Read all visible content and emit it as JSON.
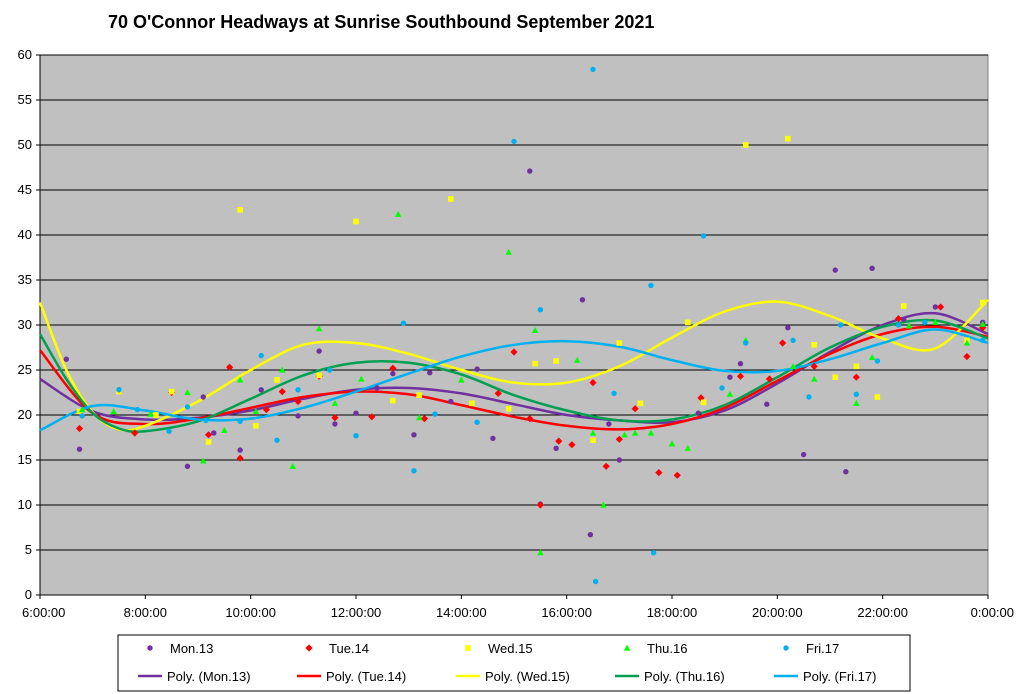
{
  "chart_data": {
    "type": "scatter",
    "title": "70 O'Connor Headways at Sunrise Southbound September 2021",
    "xlabel": "",
    "ylabel": "",
    "xlim": [
      6,
      24
    ],
    "ylim": [
      0,
      60
    ],
    "x_ticks": [
      {
        "value": 6,
        "label": "6:00:00"
      },
      {
        "value": 8,
        "label": "8:00:00"
      },
      {
        "value": 10,
        "label": "10:00:00"
      },
      {
        "value": 12,
        "label": "12:00:00"
      },
      {
        "value": 14,
        "label": "14:00:00"
      },
      {
        "value": 16,
        "label": "16:00:00"
      },
      {
        "value": 18,
        "label": "18:00:00"
      },
      {
        "value": 20,
        "label": "20:00:00"
      },
      {
        "value": 22,
        "label": "22:00:00"
      },
      {
        "value": 24,
        "label": "0:00:00"
      }
    ],
    "y_ticks": [
      0,
      5,
      10,
      15,
      20,
      25,
      30,
      35,
      40,
      45,
      50,
      55,
      60
    ],
    "grid": "horizontal",
    "plot_background": "#c0c0c0",
    "legend_position": "bottom",
    "series": [
      {
        "name": "Mon.13",
        "marker": "circle",
        "color": "#7030a0",
        "points": [
          [
            6.5,
            26.2
          ],
          [
            6.75,
            16.2
          ],
          [
            7.5,
            22.8
          ],
          [
            8.8,
            14.3
          ],
          [
            9.1,
            22.0
          ],
          [
            9.3,
            18.0
          ],
          [
            9.6,
            25.3
          ],
          [
            9.8,
            16.1
          ],
          [
            10.2,
            22.8
          ],
          [
            10.9,
            19.9
          ],
          [
            11.3,
            27.1
          ],
          [
            11.6,
            19.0
          ],
          [
            12.0,
            20.2
          ],
          [
            12.4,
            23.0
          ],
          [
            12.7,
            24.6
          ],
          [
            13.1,
            17.8
          ],
          [
            13.4,
            24.7
          ],
          [
            13.8,
            21.5
          ],
          [
            14.3,
            25.1
          ],
          [
            14.6,
            17.4
          ],
          [
            15.3,
            47.1
          ],
          [
            15.5,
            10.1
          ],
          [
            15.8,
            16.3
          ],
          [
            16.3,
            32.8
          ],
          [
            16.45,
            6.7
          ],
          [
            16.8,
            19.0
          ],
          [
            17.0,
            15.0
          ],
          [
            18.5,
            20.2
          ],
          [
            19.1,
            24.2
          ],
          [
            19.3,
            25.7
          ],
          [
            19.8,
            21.2
          ],
          [
            20.2,
            29.7
          ],
          [
            20.5,
            15.6
          ],
          [
            21.1,
            36.1
          ],
          [
            21.3,
            13.7
          ],
          [
            21.8,
            36.3
          ],
          [
            22.4,
            30.6
          ],
          [
            23.0,
            32.0
          ],
          [
            23.6,
            28.2
          ],
          [
            23.9,
            30.3
          ]
        ]
      },
      {
        "name": "Tue.14",
        "marker": "diamond",
        "color": "#ff0000",
        "points": [
          [
            6.75,
            18.5
          ],
          [
            7.8,
            18.0
          ],
          [
            8.5,
            22.5
          ],
          [
            9.2,
            17.8
          ],
          [
            9.6,
            25.3
          ],
          [
            9.8,
            15.2
          ],
          [
            10.3,
            20.6
          ],
          [
            10.6,
            22.6
          ],
          [
            10.9,
            21.5
          ],
          [
            11.3,
            24.3
          ],
          [
            11.6,
            19.7
          ],
          [
            12.3,
            19.8
          ],
          [
            12.7,
            25.2
          ],
          [
            13.3,
            19.6
          ],
          [
            14.7,
            22.4
          ],
          [
            15.0,
            27.0
          ],
          [
            15.3,
            19.6
          ],
          [
            15.5,
            10.0
          ],
          [
            15.85,
            17.1
          ],
          [
            16.1,
            16.7
          ],
          [
            16.5,
            23.6
          ],
          [
            16.75,
            14.3
          ],
          [
            17.0,
            17.3
          ],
          [
            17.3,
            20.7
          ],
          [
            17.75,
            13.6
          ],
          [
            18.1,
            13.3
          ],
          [
            18.55,
            21.9
          ],
          [
            19.3,
            24.3
          ],
          [
            19.85,
            24.0
          ],
          [
            20.1,
            28.0
          ],
          [
            20.7,
            25.4
          ],
          [
            21.5,
            24.2
          ],
          [
            22.3,
            30.7
          ],
          [
            23.1,
            32.0
          ],
          [
            23.6,
            26.5
          ],
          [
            23.9,
            29.7
          ]
        ]
      },
      {
        "name": "Wed.15",
        "marker": "square",
        "color": "#ffff00",
        "points": [
          [
            6.75,
            20.4
          ],
          [
            7.5,
            22.6
          ],
          [
            8.2,
            20.0
          ],
          [
            8.5,
            22.6
          ],
          [
            9.2,
            17.0
          ],
          [
            9.8,
            42.8
          ],
          [
            10.1,
            18.8
          ],
          [
            10.5,
            23.9
          ],
          [
            11.3,
            24.4
          ],
          [
            12.0,
            41.5
          ],
          [
            12.7,
            21.6
          ],
          [
            13.2,
            22.2
          ],
          [
            13.8,
            44.0
          ],
          [
            14.2,
            21.3
          ],
          [
            14.9,
            20.7
          ],
          [
            15.4,
            25.7
          ],
          [
            15.8,
            26.0
          ],
          [
            16.5,
            17.2
          ],
          [
            17.0,
            28.0
          ],
          [
            17.4,
            21.3
          ],
          [
            18.3,
            30.3
          ],
          [
            18.6,
            21.4
          ],
          [
            19.4,
            50.0
          ],
          [
            20.2,
            50.7
          ],
          [
            20.7,
            27.8
          ],
          [
            21.1,
            24.2
          ],
          [
            21.5,
            25.4
          ],
          [
            21.9,
            22.0
          ],
          [
            22.4,
            32.1
          ],
          [
            23.6,
            28.3
          ],
          [
            23.9,
            32.5
          ]
        ]
      },
      {
        "name": "Thu.16",
        "marker": "triangle",
        "color": "#00ff00",
        "points": [
          [
            6.8,
            20.6
          ],
          [
            7.4,
            20.4
          ],
          [
            8.1,
            20.1
          ],
          [
            8.8,
            22.5
          ],
          [
            9.1,
            14.9
          ],
          [
            9.5,
            18.3
          ],
          [
            9.8,
            23.9
          ],
          [
            10.1,
            20.4
          ],
          [
            10.6,
            25.0
          ],
          [
            10.8,
            14.3
          ],
          [
            11.3,
            29.6
          ],
          [
            11.6,
            21.3
          ],
          [
            12.1,
            24.0
          ],
          [
            12.8,
            42.3
          ],
          [
            13.2,
            19.7
          ],
          [
            14.0,
            23.9
          ],
          [
            14.9,
            38.1
          ],
          [
            15.4,
            29.4
          ],
          [
            15.5,
            4.7
          ],
          [
            16.2,
            26.1
          ],
          [
            16.5,
            18.0
          ],
          [
            16.7,
            10.0
          ],
          [
            17.1,
            17.8
          ],
          [
            17.3,
            18.0
          ],
          [
            17.6,
            18.0
          ],
          [
            18.0,
            16.8
          ],
          [
            18.3,
            16.3
          ],
          [
            19.1,
            22.3
          ],
          [
            19.4,
            28.3
          ],
          [
            20.3,
            25.4
          ],
          [
            20.7,
            24.0
          ],
          [
            21.5,
            21.3
          ],
          [
            21.8,
            26.4
          ],
          [
            22.5,
            29.9
          ],
          [
            23.0,
            30.3
          ],
          [
            23.6,
            28.0
          ],
          [
            23.9,
            30.1
          ]
        ]
      },
      {
        "name": "Fri.17",
        "marker": "circle",
        "color": "#00b0f0",
        "points": [
          [
            6.8,
            19.9
          ],
          [
            7.5,
            22.8
          ],
          [
            7.85,
            20.6
          ],
          [
            8.45,
            18.2
          ],
          [
            8.8,
            20.9
          ],
          [
            9.15,
            19.4
          ],
          [
            9.8,
            19.3
          ],
          [
            10.2,
            26.6
          ],
          [
            10.5,
            17.2
          ],
          [
            10.9,
            22.8
          ],
          [
            11.5,
            25.0
          ],
          [
            12.0,
            17.7
          ],
          [
            12.9,
            30.2
          ],
          [
            13.1,
            13.8
          ],
          [
            13.5,
            20.1
          ],
          [
            14.3,
            19.2
          ],
          [
            15.0,
            50.4
          ],
          [
            15.5,
            31.7
          ],
          [
            16.5,
            58.4
          ],
          [
            16.55,
            1.5
          ],
          [
            16.9,
            22.4
          ],
          [
            17.6,
            34.4
          ],
          [
            17.65,
            4.7
          ],
          [
            18.6,
            39.9
          ],
          [
            18.95,
            23.0
          ],
          [
            19.4,
            28.0
          ],
          [
            20.3,
            28.3
          ],
          [
            20.6,
            22.0
          ],
          [
            21.2,
            30.0
          ],
          [
            21.5,
            22.3
          ],
          [
            21.9,
            26.0
          ],
          [
            22.3,
            30.0
          ],
          [
            22.8,
            30.3
          ],
          [
            23.9,
            28.3
          ]
        ]
      }
    ],
    "trendlines": [
      {
        "name": "Poly. (Mon.13)",
        "color": "#7030a0",
        "points": [
          [
            6,
            24.0
          ],
          [
            7,
            20.4
          ],
          [
            8,
            19.5
          ],
          [
            9,
            19.7
          ],
          [
            10,
            20.5
          ],
          [
            11,
            21.8
          ],
          [
            12,
            22.8
          ],
          [
            13,
            23.0
          ],
          [
            14,
            22.4
          ],
          [
            15,
            21.2
          ],
          [
            16,
            20.0
          ],
          [
            17,
            19.4
          ],
          [
            18,
            19.2
          ],
          [
            19,
            20.5
          ],
          [
            20,
            23.5
          ],
          [
            21,
            27.0
          ],
          [
            22,
            30.0
          ],
          [
            23,
            31.3
          ],
          [
            24,
            29.0
          ]
        ]
      },
      {
        "name": "Poly. (Tue.14)",
        "color": "#ff0000",
        "points": [
          [
            6,
            27.2
          ],
          [
            7,
            20.2
          ],
          [
            8,
            19.0
          ],
          [
            9,
            19.6
          ],
          [
            10,
            20.8
          ],
          [
            11,
            22.0
          ],
          [
            12,
            22.6
          ],
          [
            13,
            22.3
          ],
          [
            14,
            21.1
          ],
          [
            15,
            19.8
          ],
          [
            16,
            18.8
          ],
          [
            17,
            18.4
          ],
          [
            18,
            19.0
          ],
          [
            19,
            20.8
          ],
          [
            20,
            23.8
          ],
          [
            21,
            26.8
          ],
          [
            22,
            29.0
          ],
          [
            23,
            29.8
          ],
          [
            24,
            28.7
          ]
        ]
      },
      {
        "name": "Poly. (Wed.15)",
        "color": "#ffff00",
        "points": [
          [
            6,
            32.5
          ],
          [
            6.5,
            25.0
          ],
          [
            7,
            20.3
          ],
          [
            7.5,
            18.4
          ],
          [
            8,
            18.8
          ],
          [
            9,
            21.5
          ],
          [
            10,
            25.0
          ],
          [
            11,
            27.8
          ],
          [
            12,
            28.0
          ],
          [
            13,
            26.8
          ],
          [
            14,
            25.0
          ],
          [
            15,
            23.6
          ],
          [
            16,
            23.6
          ],
          [
            17,
            25.4
          ],
          [
            18,
            28.6
          ],
          [
            19,
            31.5
          ],
          [
            20,
            32.6
          ],
          [
            21,
            31.0
          ],
          [
            22,
            28.5
          ],
          [
            23,
            27.4
          ],
          [
            24,
            32.8
          ]
        ]
      },
      {
        "name": "Poly. (Thu.16)",
        "color": "#00a050",
        "points": [
          [
            6,
            29.0
          ],
          [
            6.5,
            24.0
          ],
          [
            7,
            20.2
          ],
          [
            7.5,
            18.5
          ],
          [
            8,
            18.2
          ],
          [
            9,
            19.3
          ],
          [
            10,
            21.8
          ],
          [
            11,
            24.4
          ],
          [
            12,
            25.8
          ],
          [
            13,
            25.8
          ],
          [
            14,
            24.5
          ],
          [
            15,
            22.2
          ],
          [
            16,
            20.5
          ],
          [
            17,
            19.4
          ],
          [
            18,
            19.5
          ],
          [
            19,
            21.1
          ],
          [
            20,
            24.2
          ],
          [
            21,
            27.5
          ],
          [
            22,
            29.8
          ],
          [
            23,
            30.5
          ],
          [
            24,
            28.5
          ]
        ]
      },
      {
        "name": "Poly. (Fri.17)",
        "color": "#00b0f0",
        "points": [
          [
            6,
            18.3
          ],
          [
            7,
            21.0
          ],
          [
            8,
            20.5
          ],
          [
            9,
            19.5
          ],
          [
            10,
            19.6
          ],
          [
            11,
            20.8
          ],
          [
            12,
            22.6
          ],
          [
            13,
            24.6
          ],
          [
            14,
            26.5
          ],
          [
            15,
            27.8
          ],
          [
            16,
            28.2
          ],
          [
            17,
            27.6
          ],
          [
            18,
            26.1
          ],
          [
            19,
            24.9
          ],
          [
            20,
            24.9
          ],
          [
            21,
            26.2
          ],
          [
            22,
            28.0
          ],
          [
            23,
            29.5
          ],
          [
            24,
            28.0
          ]
        ]
      }
    ]
  }
}
